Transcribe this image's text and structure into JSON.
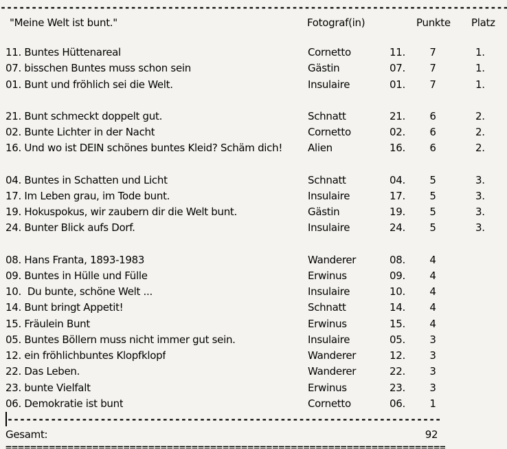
{
  "page": {
    "background": "#f4f3ef",
    "text_color": "#000000"
  },
  "header": {
    "title": "\"Meine Welt ist bunt.\"",
    "columns": {
      "fotograf": "Fotograf(in)",
      "punkte": "Punkte",
      "platz": "Platz"
    }
  },
  "separators": {
    "top": "--------------------------------------------------------------------------------------------------------------------------",
    "middle": "----------------------------------------------------------------------------------------------",
    "bottom": "================================================================================",
    "cursor": "|"
  },
  "groups": [
    {
      "rows": [
        {
          "title": "11. Buntes Hüttenareal",
          "fotograf": "Cornetto",
          "nr": "11.",
          "punkte": "7",
          "platz": "1."
        },
        {
          "title": "07. bisschen Buntes muss schon sein",
          "fotograf": "Gästin",
          "nr": "07.",
          "punkte": "7",
          "platz": "1."
        },
        {
          "title": "01. Bunt und fröhlich sei die Welt.",
          "fotograf": "Insulaire",
          "nr": "01.",
          "punkte": "7",
          "platz": "1."
        }
      ]
    },
    {
      "rows": [
        {
          "title": "21. Bunt schmeckt doppelt gut.",
          "fotograf": "Schnatt",
          "nr": "21.",
          "punkte": "6",
          "platz": "2."
        },
        {
          "title": "02. Bunte Lichter in der Nacht",
          "fotograf": "Cornetto",
          "nr": "02.",
          "punkte": "6",
          "platz": "2."
        },
        {
          "title": "16. Und wo ist DEIN schönes buntes Kleid? Schäm dich!",
          "fotograf": "Alien",
          "nr": "16.",
          "punkte": "6",
          "platz": "2."
        }
      ]
    },
    {
      "rows": [
        {
          "title": "04. Buntes in Schatten und Licht",
          "fotograf": "Schnatt",
          "nr": "04.",
          "punkte": "5",
          "platz": "3."
        },
        {
          "title": "17. Im Leben grau, im Tode bunt.",
          "fotograf": "Insulaire",
          "nr": "17.",
          "punkte": "5",
          "platz": "3."
        },
        {
          "title": "19. Hokuspokus, wir zaubern dir die Welt bunt.",
          "fotograf": "Gästin",
          "nr": "19.",
          "punkte": "5",
          "platz": "3."
        },
        {
          "title": "24. Bunter Blick aufs Dorf.",
          "fotograf": "Insulaire",
          "nr": "24.",
          "punkte": "5",
          "platz": "3."
        }
      ]
    },
    {
      "rows": [
        {
          "title": "08. Hans Franta, 1893-1983",
          "fotograf": "Wanderer",
          "nr": "08.",
          "punkte": "4",
          "platz": ""
        },
        {
          "title": "09. Buntes in Hülle und Fülle",
          "fotograf": "Erwinus",
          "nr": "09.",
          "punkte": "4",
          "platz": ""
        },
        {
          "title": "10.  Du bunte, schöne Welt ...",
          "fotograf": "Insulaire",
          "nr": "10.",
          "punkte": "4",
          "platz": ""
        },
        {
          "title": "14. Bunt bringt Appetit!",
          "fotograf": "Schnatt",
          "nr": "14.",
          "punkte": "4",
          "platz": ""
        },
        {
          "title": "15. Fräulein Bunt",
          "fotograf": "Erwinus",
          "nr": "15.",
          "punkte": "4",
          "platz": ""
        },
        {
          "title": "05. Buntes Böllern muss nicht immer gut sein.",
          "fotograf": "Insulaire",
          "nr": "05.",
          "punkte": "3",
          "platz": ""
        },
        {
          "title": "12. ein fröhlichbuntes Klopfklopf",
          "fotograf": "Wanderer",
          "nr": "12.",
          "punkte": "3",
          "platz": ""
        },
        {
          "title": "22. Das Leben.",
          "fotograf": "Wanderer",
          "nr": "22.",
          "punkte": "3",
          "platz": ""
        },
        {
          "title": "23. bunte Vielfalt",
          "fotograf": "Erwinus",
          "nr": "23.",
          "punkte": "3",
          "platz": ""
        },
        {
          "title": "06. Demokratie ist bunt",
          "fotograf": "Cornetto",
          "nr": "06.",
          "punkte": "1",
          "platz": ""
        }
      ]
    }
  ],
  "footer": {
    "label": "Gesamt:",
    "total": "92"
  }
}
